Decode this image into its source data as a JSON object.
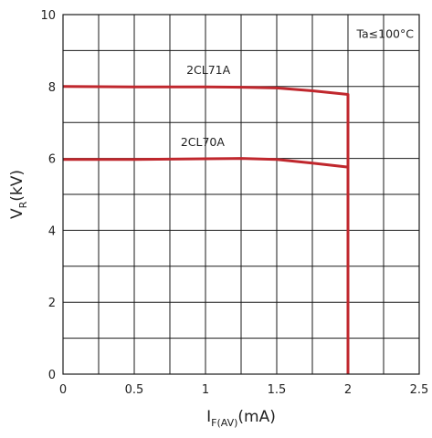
{
  "chart_data": {
    "type": "line",
    "title": "",
    "xlabel_main": "I",
    "xlabel_sub": "F(AV)",
    "xlabel_unit": "(mA)",
    "ylabel_main": "V",
    "ylabel_sub": "R",
    "ylabel_unit": "(kV)",
    "xlim": [
      0,
      2.5
    ],
    "ylim": [
      0,
      10
    ],
    "x_ticks": [
      0,
      0.5,
      1,
      1.5,
      2,
      2.5
    ],
    "x_tick_labels": [
      "0",
      "0.5",
      "1",
      "1.5",
      "2",
      "2.5"
    ],
    "y_ticks": [
      0,
      2,
      4,
      6,
      8,
      10
    ],
    "y_tick_labels": [
      "0",
      "2",
      "4",
      "6",
      "8",
      "10"
    ],
    "grid": true,
    "condition_note": "Ta≤100°C",
    "line_color": "#c0272d",
    "series": [
      {
        "name": "2CL71A",
        "x": [
          0,
          0.5,
          1.0,
          1.25,
          1.5,
          1.75,
          2.0,
          2.0
        ],
        "y": [
          8.0,
          7.99,
          7.99,
          7.98,
          7.96,
          7.88,
          7.78,
          0
        ]
      },
      {
        "name": "2CL70A",
        "x": [
          0,
          0.5,
          1.0,
          1.25,
          1.5,
          1.75,
          2.0,
          2.0
        ],
        "y": [
          5.97,
          5.97,
          5.99,
          6.0,
          5.97,
          5.87,
          5.76,
          0
        ]
      }
    ]
  }
}
